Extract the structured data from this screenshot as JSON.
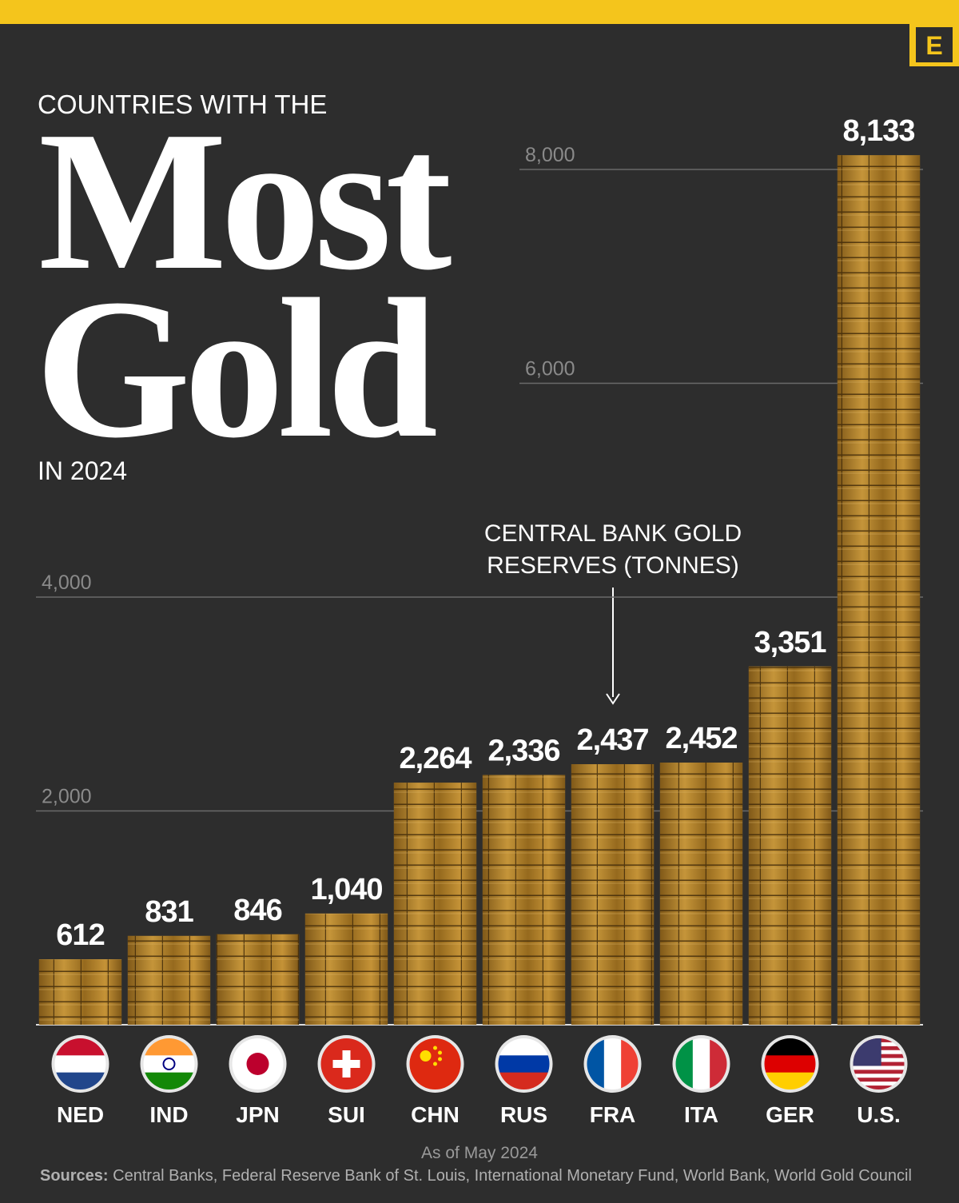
{
  "chart_data": {
    "type": "bar",
    "header": "COUNTRIES WITH THE",
    "title_lines": [
      "Most",
      "Gold"
    ],
    "subtitle": "IN 2024",
    "annotation": [
      "CENTRAL BANK GOLD",
      "RESERVES (TONNES)"
    ],
    "categories": [
      "NED",
      "IND",
      "JPN",
      "SUI",
      "CHN",
      "RUS",
      "FRA",
      "ITA",
      "GER",
      "U.S."
    ],
    "values": [
      612,
      831,
      846,
      1040,
      2264,
      2336,
      2437,
      2452,
      3351,
      8133
    ],
    "value_labels": [
      "612",
      "831",
      "846",
      "1,040",
      "2,264",
      "2,336",
      "2,437",
      "2,452",
      "3,351",
      "8,133"
    ],
    "color": "#b8862c",
    "ylim": [
      0,
      8000
    ],
    "yticks": [
      {
        "value": 2000,
        "label": "2,000"
      },
      {
        "value": 4000,
        "label": "4,000"
      },
      {
        "value": 6000,
        "label": "6,000"
      },
      {
        "value": 8000,
        "label": "8,000"
      }
    ],
    "grid": true,
    "note": "As of May 2024",
    "sources_label": "Sources:",
    "sources": "Central Banks, Federal Reserve Bank of St. Louis, International Monetary Fund, World Bank, World Gold Council",
    "logo": "E"
  }
}
